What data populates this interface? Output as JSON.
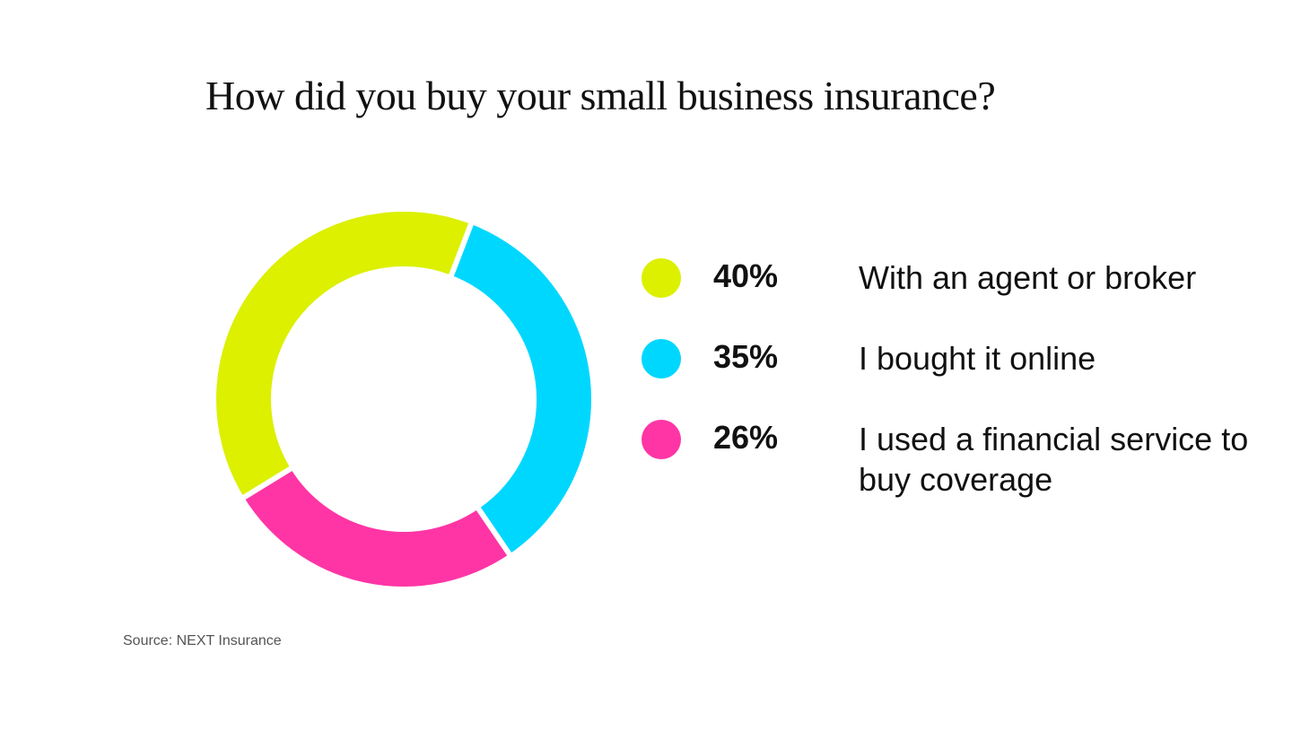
{
  "chart_data": {
    "type": "pie",
    "style": "donut",
    "title": "How did you buy your small business insurance?",
    "series": [
      {
        "label_value": "40%",
        "value": 40,
        "name": "With an agent or broker",
        "color": "#dcf000"
      },
      {
        "label_value": "35%",
        "value": 35,
        "name": "I bought it online",
        "color": "#00d7ff"
      },
      {
        "label_value": "26%",
        "value": 26,
        "name": "I used a financial service to buy coverage",
        "color": "#ff35a5"
      }
    ],
    "legend_placement": "right",
    "source": "Source: NEXT Insurance"
  }
}
